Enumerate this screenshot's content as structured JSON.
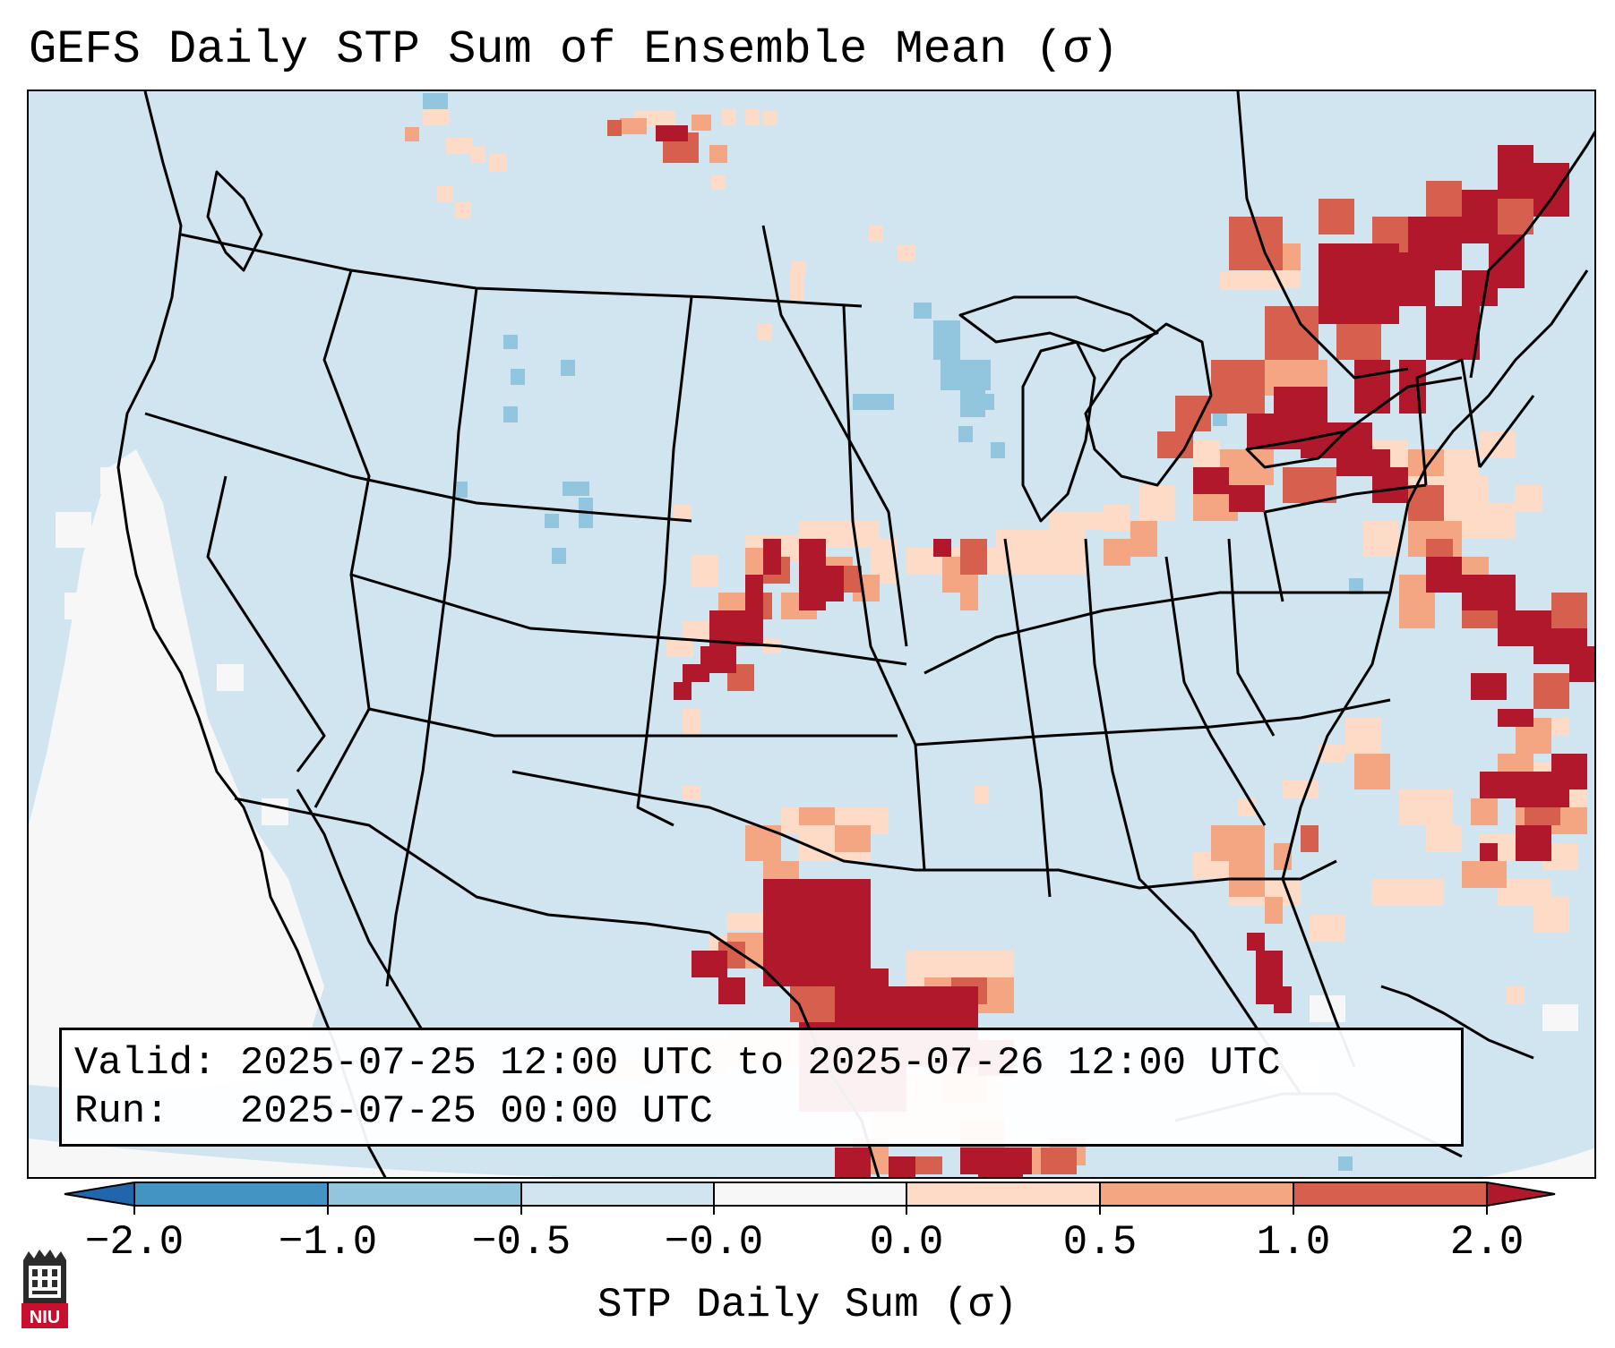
{
  "title": "GEFS Daily STP Sum of Ensemble Mean (σ)",
  "info": {
    "valid_line": "Valid: 2025-07-25 12:00 UTC to 2025-07-26 12:00 UTC",
    "run_line": "Run:   2025-07-25 00:00 UTC"
  },
  "colorbar": {
    "label": "STP Daily Sum (σ)",
    "ticks": [
      "−2.0",
      "−1.0",
      "−0.5",
      "−0.0",
      "0.0",
      "0.5",
      "1.0",
      "2.0"
    ],
    "colors": [
      "#2166ac",
      "#4393c3",
      "#92c5de",
      "#d1e5f0",
      "#f7f7f7",
      "#fddbc7",
      "#f4a582",
      "#d6604d",
      "#b2182b"
    ]
  },
  "logo": {
    "text": "NIU"
  },
  "colors": {
    "ocean_background": "#d1e5f0",
    "strong_positive": "#b2182b",
    "positive": "#d6604d",
    "weak_positive": "#f4a582",
    "slight_positive": "#fddbc7",
    "near_zero": "#f7f7f7",
    "slight_negative": "#92c5de"
  }
}
